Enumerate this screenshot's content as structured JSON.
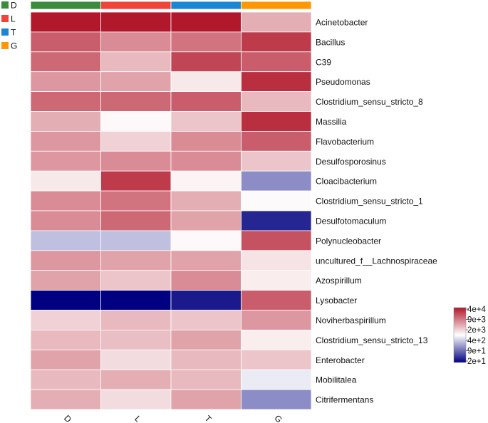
{
  "chart_data": {
    "type": "heatmap",
    "title": "",
    "columns": [
      "D",
      "L",
      "T",
      "G"
    ],
    "column_labels": [
      "D",
      "L",
      "T",
      "G"
    ],
    "groups": [
      {
        "name": "D",
        "color": "#3a8b3c"
      },
      {
        "name": "L",
        "color": "#f04438"
      },
      {
        "name": "T",
        "color": "#1b87d4"
      },
      {
        "name": "G",
        "color": "#ff9800"
      }
    ],
    "rows": [
      "Acinetobacter",
      "Bacillus",
      "C39",
      "Pseudomonas",
      "Clostridium_sensu_stricto_8",
      "Massilia",
      "Flavobacterium",
      "Desulfosporosinus",
      "Cloacibacterium",
      "Clostridium_sensu_stricto_1",
      "Desulfotomaculum",
      "Polynucleobacter",
      "uncultured_f__Lachnospiraceae",
      "Azospirillum",
      "Lysobacter",
      "Noviherbaspirillum",
      "Clostridium_sensu_stricto_13",
      "Enterobacter",
      "Mobilitalea",
      "Citrifermentans"
    ],
    "values": [
      [
        1.0,
        1.0,
        1.0,
        0.35
      ],
      [
        0.7,
        0.5,
        0.6,
        0.85
      ],
      [
        0.65,
        0.3,
        0.8,
        0.7
      ],
      [
        0.45,
        0.4,
        0.1,
        0.9
      ],
      [
        0.65,
        0.65,
        0.7,
        0.3
      ],
      [
        0.35,
        0.03,
        0.25,
        0.9
      ],
      [
        0.45,
        0.2,
        0.5,
        0.7
      ],
      [
        0.45,
        0.5,
        0.5,
        0.25
      ],
      [
        0.1,
        0.85,
        0.05,
        -0.45
      ],
      [
        0.5,
        0.6,
        0.35,
        0.02
      ],
      [
        0.5,
        0.65,
        0.4,
        -0.85
      ],
      [
        -0.25,
        -0.25,
        0.03,
        0.75
      ],
      [
        0.45,
        0.4,
        0.4,
        0.12
      ],
      [
        0.4,
        0.25,
        0.5,
        0.08
      ],
      [
        -1.0,
        -1.0,
        -0.9,
        0.7
      ],
      [
        0.2,
        0.3,
        0.25,
        0.45
      ],
      [
        0.3,
        0.28,
        0.4,
        0.08
      ],
      [
        0.4,
        0.15,
        0.3,
        0.25
      ],
      [
        0.3,
        0.35,
        0.3,
        -0.08
      ],
      [
        0.35,
        0.15,
        0.4,
        -0.45
      ]
    ],
    "value_scale": "relative abundance on log color scale; -1 = lowest (navy), 0 = white, 1 = highest (red)",
    "legend": {
      "labels": [
        "4e+4",
        "9e+3",
        "2e+3",
        "4e+2",
        "9e+1",
        "2e+1"
      ],
      "colors": {
        "high": "#b2182b",
        "mid": "#ffffff",
        "low": "#000080"
      },
      "position": "right"
    },
    "xlabel": "",
    "ylabel": ""
  }
}
